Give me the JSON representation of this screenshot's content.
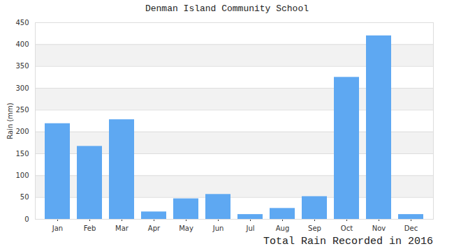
{
  "chart_data": {
    "type": "bar",
    "title": "Denman Island Community School",
    "x_label": "Total Rain Recorded in 2016",
    "y_label": "Rain (mm)",
    "categories": [
      "Jan",
      "Feb",
      "Mar",
      "Apr",
      "May",
      "Jun",
      "Jul",
      "Aug",
      "Sep",
      "Oct",
      "Nov",
      "Dec"
    ],
    "values": [
      219,
      167,
      228,
      17,
      47,
      57,
      11,
      25,
      52,
      325,
      420,
      11
    ],
    "color": "#5ea8f2",
    "ylim": [
      0,
      450
    ],
    "yticks": [
      0,
      50,
      100,
      150,
      200,
      250,
      300,
      350,
      400,
      450
    ],
    "grid": true
  }
}
